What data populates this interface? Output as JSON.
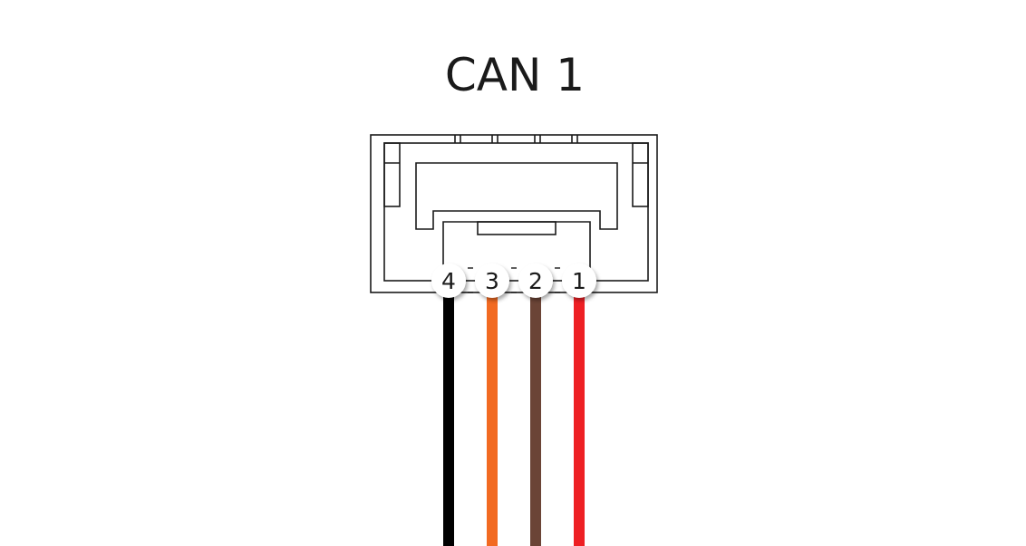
{
  "diagram": {
    "title": "CAN 1",
    "pins": [
      {
        "label": "4",
        "wire_color": "#000000"
      },
      {
        "label": "3",
        "wire_color": "#f26a21"
      },
      {
        "label": "2",
        "wire_color": "#6b4436"
      },
      {
        "label": "1",
        "wire_color": "#ee2024"
      }
    ]
  }
}
